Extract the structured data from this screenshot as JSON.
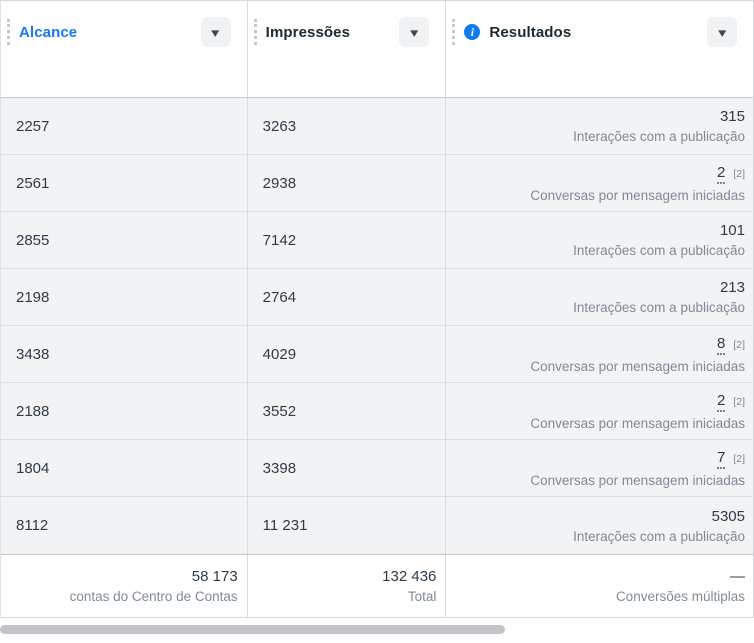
{
  "colors": {
    "accent_blue": "#1877f2",
    "header_text": "#1c2b33",
    "value_text": "#2d3c48",
    "secondary_text": "#7e8b96",
    "row_bg": "#f2f3f5",
    "info_icon_bg": "#0f7bf2",
    "scrollbar_thumb": "#c2c4c8"
  },
  "icons": {
    "caret_down": "▾",
    "info": "i"
  },
  "table": {
    "columns": [
      {
        "label": "Alcance",
        "sorted": true
      },
      {
        "label": "Impressões",
        "sorted": false
      },
      {
        "label": "Resultados",
        "sorted": false,
        "has_info_icon": true
      }
    ],
    "rows": [
      {
        "alcance": "2257",
        "impressoes": "3263",
        "resultado": {
          "value": "315",
          "note": "",
          "label": "Interações com a publicação"
        }
      },
      {
        "alcance": "2561",
        "impressoes": "2938",
        "resultado": {
          "value": "2",
          "note": "[2]",
          "label": "Conversas por mensagem iniciadas"
        }
      },
      {
        "alcance": "2855",
        "impressoes": "7142",
        "resultado": {
          "value": "101",
          "note": "",
          "label": "Interações com a publicação"
        }
      },
      {
        "alcance": "2198",
        "impressoes": "2764",
        "resultado": {
          "value": "213",
          "note": "",
          "label": "Interações com a publicação"
        }
      },
      {
        "alcance": "3438",
        "impressoes": "4029",
        "resultado": {
          "value": "8",
          "note": "[2]",
          "label": "Conversas por mensagem iniciadas"
        }
      },
      {
        "alcance": "2188",
        "impressoes": "3552",
        "resultado": {
          "value": "2",
          "note": "[2]",
          "label": "Conversas por mensagem iniciadas"
        }
      },
      {
        "alcance": "1804",
        "impressoes": "3398",
        "resultado": {
          "value": "7",
          "note": "[2]",
          "label": "Conversas por mensagem iniciadas"
        }
      },
      {
        "alcance": "8112",
        "impressoes": "11 231",
        "resultado": {
          "value": "5305",
          "note": "",
          "label": "Interações com a publicação"
        }
      }
    ],
    "footer": {
      "alcance": {
        "value": "58 173",
        "label": "contas do Centro de Contas"
      },
      "impressoes": {
        "value": "132 436",
        "label": "Total"
      },
      "resultados": {
        "value": "—",
        "label": "Conversões múltiplas"
      }
    }
  }
}
